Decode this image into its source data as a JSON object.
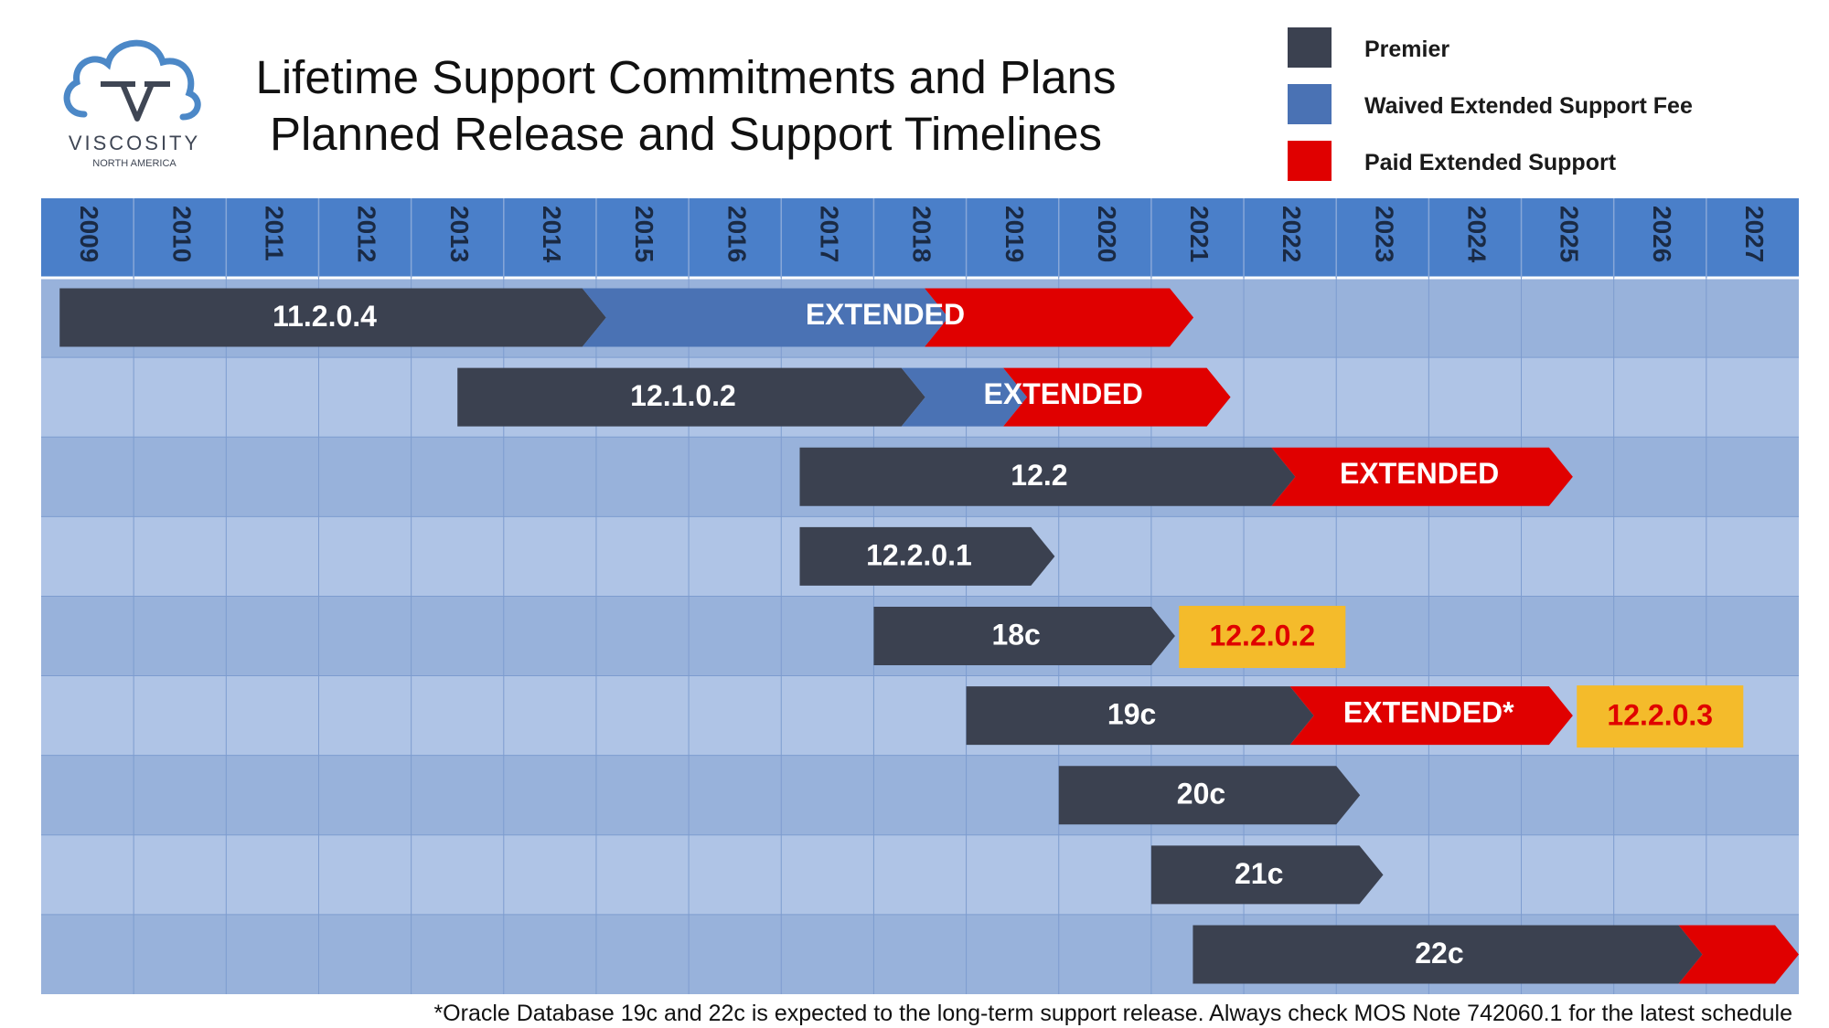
{
  "logo": {
    "name": "VISCOSITY",
    "sub": "NORTH AMERICA"
  },
  "titles": [
    "Lifetime Support Commitments and Plans",
    "Planned Release and Support Timelines"
  ],
  "legend": [
    {
      "label": "Premier",
      "color": "#3b4150"
    },
    {
      "label": "Waived Extended Support Fee",
      "color": "#4a72b4"
    },
    {
      "label": "Paid Extended Support",
      "color": "#e00000"
    }
  ],
  "chart_data": {
    "type": "gantt",
    "years": [
      "2009",
      "2010",
      "2011",
      "2012",
      "2013",
      "2014",
      "2015",
      "2016",
      "2017",
      "2018",
      "2019",
      "2020",
      "2021",
      "2022",
      "2023",
      "2024",
      "2025",
      "2026",
      "2027"
    ],
    "colors": {
      "premier": "#3b4150",
      "waived": "#4a72b4",
      "paid": "#e00000",
      "note_bg": "#f4bb2b",
      "note_text": "#e00000"
    },
    "rows": [
      {
        "release": "11.2.0.4",
        "segments": [
          {
            "type": "premier",
            "start": 2009.2,
            "end": 2014.85
          },
          {
            "type": "waived",
            "start": 2014.85,
            "end": 2018.55
          },
          {
            "type": "paid",
            "start": 2018.55,
            "end": 2021.2
          }
        ],
        "extended_label": "EXTENDED"
      },
      {
        "release": "12.1.0.2",
        "segments": [
          {
            "type": "premier",
            "start": 2013.5,
            "end": 2018.3
          },
          {
            "type": "waived",
            "start": 2018.3,
            "end": 2019.4
          },
          {
            "type": "paid",
            "start": 2019.4,
            "end": 2021.6
          }
        ],
        "extended_label": "EXTENDED"
      },
      {
        "release": "12.2",
        "segments": [
          {
            "type": "premier",
            "start": 2017.2,
            "end": 2022.3
          },
          {
            "type": "paid",
            "start": 2022.3,
            "end": 2025.3
          }
        ],
        "extended_label": "EXTENDED"
      },
      {
        "release": "12.2.0.1",
        "segments": [
          {
            "type": "premier",
            "start": 2017.2,
            "end": 2019.7
          }
        ]
      },
      {
        "release": "18c",
        "segments": [
          {
            "type": "premier",
            "start": 2018.0,
            "end": 2021.0
          }
        ],
        "note": {
          "label": "12.2.0.2",
          "start": 2021.3,
          "end": 2023.1
        }
      },
      {
        "release": "19c",
        "segments": [
          {
            "type": "premier",
            "start": 2019.0,
            "end": 2022.5
          },
          {
            "type": "paid",
            "start": 2022.5,
            "end": 2025.3
          }
        ],
        "extended_label": "EXTENDED*",
        "note": {
          "label": "12.2.0.3",
          "start": 2025.6,
          "end": 2027.4
        }
      },
      {
        "release": "20c",
        "segments": [
          {
            "type": "premier",
            "start": 2020.0,
            "end": 2023.0
          }
        ]
      },
      {
        "release": "21c",
        "segments": [
          {
            "type": "premier",
            "start": 2021.0,
            "end": 2023.25
          }
        ]
      },
      {
        "release": "22c",
        "segments": [
          {
            "type": "premier",
            "start": 2021.45,
            "end": 2026.7
          },
          {
            "type": "paid",
            "start": 2026.7,
            "end": 2028.0
          }
        ]
      }
    ],
    "footnote": "*Oracle Database 19c and 22c is expected to the long-term support release. Always check MOS Note 742060.1 for the latest schedule"
  }
}
